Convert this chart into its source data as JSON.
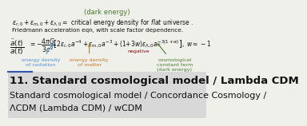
{
  "bg_top": "#f0f0eb",
  "title_bar_color": "#d8d8d8",
  "title_text": "11. Standard cosmological model / Lambda CDM",
  "title_fontsize": 9.5,
  "subtitle_line1": "Standard cosmological model / Concordance Cosmology /",
  "subtitle_line2": "ΛCDM (Lambda CDM) / wCDM",
  "subtitle_fontsize": 8.0,
  "label_radiation_color": "#4a90d9",
  "label_matter_color": "#c87820",
  "label_cosmo_color": "#4a7a30",
  "label_negative_color": "#8B0000",
  "text_color": "#111111",
  "blue_accent": "#3355aa"
}
